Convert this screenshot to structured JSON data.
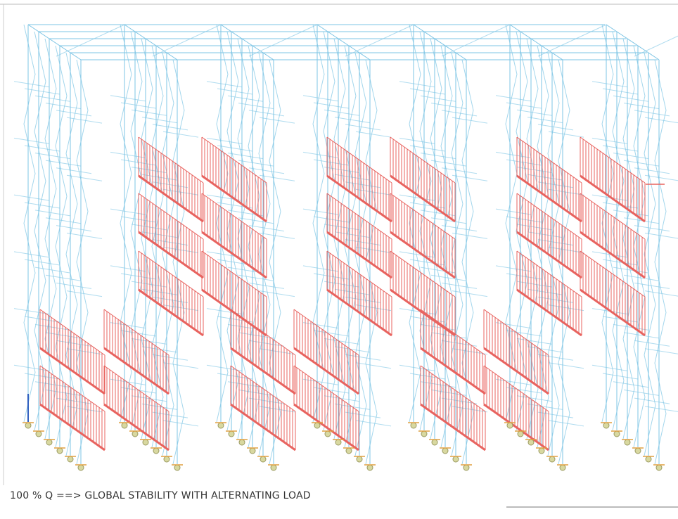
{
  "caption": "100 % Q ==> GLOBAL STABILITY WITH ALTERNATING LOAD"
}
